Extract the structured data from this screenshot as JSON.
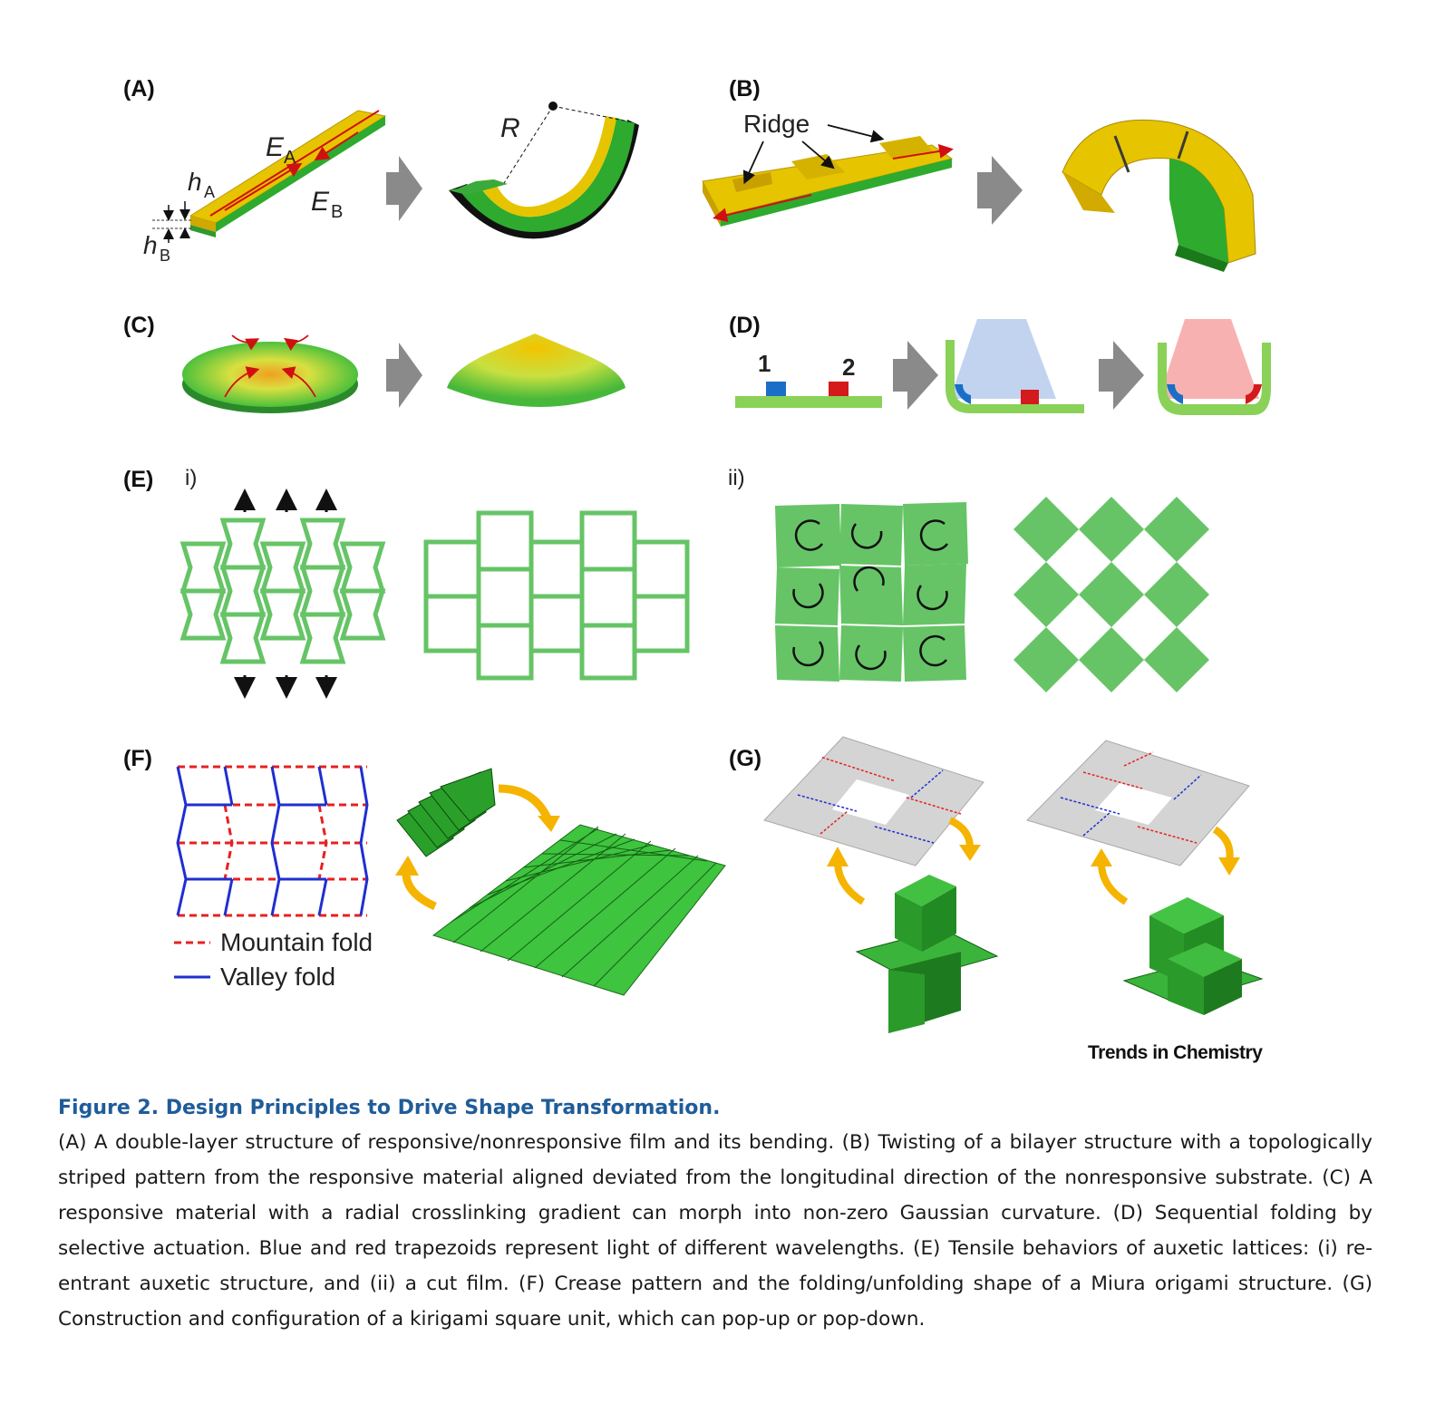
{
  "figure": {
    "panels": {
      "A": "(A)",
      "B": "(B)",
      "C": "(C)",
      "D": "(D)",
      "E": "(E)",
      "F": "(F)",
      "G": "(G)"
    },
    "a_labels": {
      "E": "E",
      "A_sub": "A",
      "B_sub": "B",
      "h": "h",
      "R": "R"
    },
    "b_labels": {
      "ridge": "Ridge"
    },
    "d_labels": {
      "one": "1",
      "two": "2"
    },
    "e_labels": {
      "i": "i)",
      "ii": "ii)"
    },
    "f_legend": {
      "mountain": "Mountain fold",
      "valley": "Valley fold"
    },
    "journal": "Trends in Chemistry",
    "colors": {
      "yellow": "#e8c800",
      "green": "#3cb83c",
      "lattice": "#66c466",
      "mountain": "#e82020",
      "valley": "#1f2fd1",
      "arrow": "#f5b400",
      "gray": "#8a8a8a"
    }
  },
  "caption": {
    "title": "Figure 2.  Design Principles to Drive Shape Transformation.",
    "body": "(A) A double-layer structure of responsive/nonresponsive film and its bending. (B) Twisting of a bilayer structure with a topologically striped pattern from the responsive material aligned deviated from the longitudinal direction of the nonresponsive substrate. (C) A responsive material with a radial crosslinking gradient can morph into non-zero Gaussian curvature. (D) Sequential folding by selective actuation. Blue and red trapezoids represent light of different wavelengths. (E) Tensile behaviors of auxetic lattices: (i) re-entrant auxetic structure, and (ii) a cut film. (F) Crease pattern and the folding/unfolding shape of a Miura origami structure. (G) Construction and configuration of a kirigami square unit, which can pop-up or pop-down."
  }
}
